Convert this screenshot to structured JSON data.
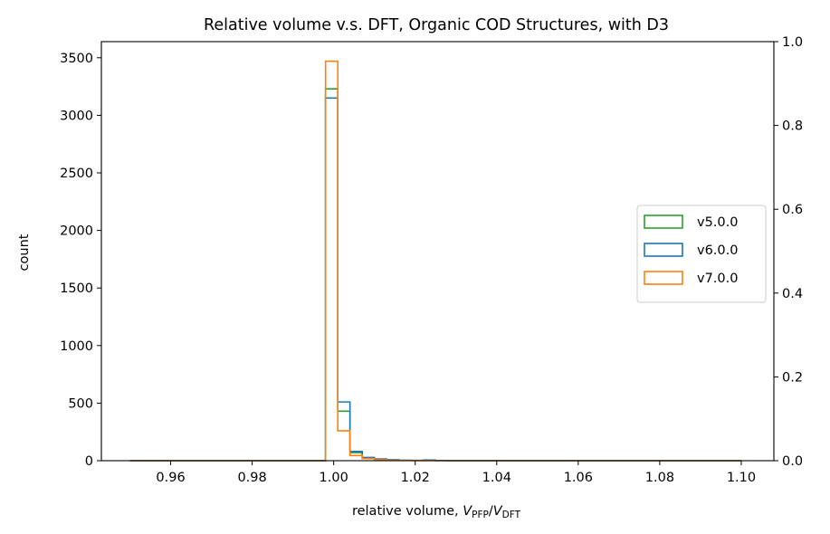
{
  "chart_data": {
    "type": "histogram",
    "title": "Relative volume v.s. DFT, Organic COD Structures, with D3",
    "xlabel": {
      "prefix": "relative volume, ",
      "num_symbol": "V",
      "num_sub": "PFP",
      "slash": "/",
      "den_symbol": "V",
      "den_sub": "DFT"
    },
    "ylabel": "count",
    "xlim": [
      0.943,
      1.108
    ],
    "ylim": [
      0,
      3640
    ],
    "y2lim": [
      0,
      1.0
    ],
    "x_ticks": [
      0.96,
      0.98,
      1.0,
      1.02,
      1.04,
      1.06,
      1.08,
      1.1
    ],
    "x_tick_labels": [
      "0.96",
      "0.98",
      "1.00",
      "1.02",
      "1.04",
      "1.06",
      "1.08",
      "1.10"
    ],
    "y_ticks": [
      0,
      500,
      1000,
      1500,
      2000,
      2500,
      3000,
      3500
    ],
    "y_tick_labels": [
      "0",
      "500",
      "1000",
      "1500",
      "2000",
      "2500",
      "3000",
      "3500"
    ],
    "y2_ticks": [
      0.0,
      0.2,
      0.4,
      0.6,
      0.8,
      1.0
    ],
    "y2_tick_labels": [
      "0.0",
      "0.2",
      "0.4",
      "0.6",
      "0.8",
      "1.0"
    ],
    "bin_edges": [
      0.95,
      0.953,
      0.956,
      0.959,
      0.962,
      0.965,
      0.968,
      0.971,
      0.974,
      0.977,
      0.98,
      0.983,
      0.986,
      0.989,
      0.992,
      0.995,
      0.998,
      1.001,
      1.004,
      1.007,
      1.01,
      1.013,
      1.016,
      1.019,
      1.022,
      1.025,
      1.028,
      1.031,
      1.034,
      1.037,
      1.04,
      1.043,
      1.046,
      1.049,
      1.052,
      1.055,
      1.058,
      1.061,
      1.064,
      1.067,
      1.07,
      1.073,
      1.076,
      1.079,
      1.082,
      1.085,
      1.088,
      1.091,
      1.094,
      1.097,
      1.1
    ],
    "legend_position": "center-right",
    "series": [
      {
        "name": "v5.0.0",
        "color": "#2ca02c",
        "counts": [
          0,
          0,
          0,
          0,
          0,
          0,
          0,
          0,
          0,
          0,
          0,
          0,
          0,
          0,
          0,
          0,
          3230,
          430,
          70,
          25,
          12,
          6,
          3,
          2,
          2,
          1,
          0,
          0,
          0,
          0,
          0,
          0,
          0,
          0,
          0,
          0,
          0,
          0,
          0,
          0,
          0,
          0,
          0,
          0,
          0,
          0,
          0,
          0,
          0,
          0
        ]
      },
      {
        "name": "v6.0.0",
        "color": "#1f77b4",
        "counts": [
          0,
          0,
          0,
          0,
          0,
          0,
          0,
          0,
          0,
          0,
          0,
          0,
          0,
          0,
          0,
          0,
          3150,
          510,
          80,
          28,
          15,
          8,
          4,
          3,
          6,
          2,
          0,
          0,
          0,
          0,
          0,
          0,
          0,
          0,
          0,
          0,
          0,
          0,
          0,
          0,
          0,
          0,
          0,
          0,
          0,
          0,
          0,
          0,
          0,
          0
        ]
      },
      {
        "name": "v7.0.0",
        "color": "#ff7f0e",
        "counts": [
          0,
          0,
          0,
          0,
          0,
          0,
          0,
          0,
          0,
          0,
          0,
          0,
          0,
          0,
          0,
          0,
          3470,
          260,
          45,
          18,
          8,
          4,
          2,
          1,
          1,
          0,
          0,
          0,
          0,
          0,
          0,
          0,
          0,
          0,
          0,
          0,
          0,
          0,
          0,
          0,
          0,
          0,
          0,
          0,
          0,
          0,
          0,
          0,
          0,
          0
        ]
      }
    ]
  }
}
